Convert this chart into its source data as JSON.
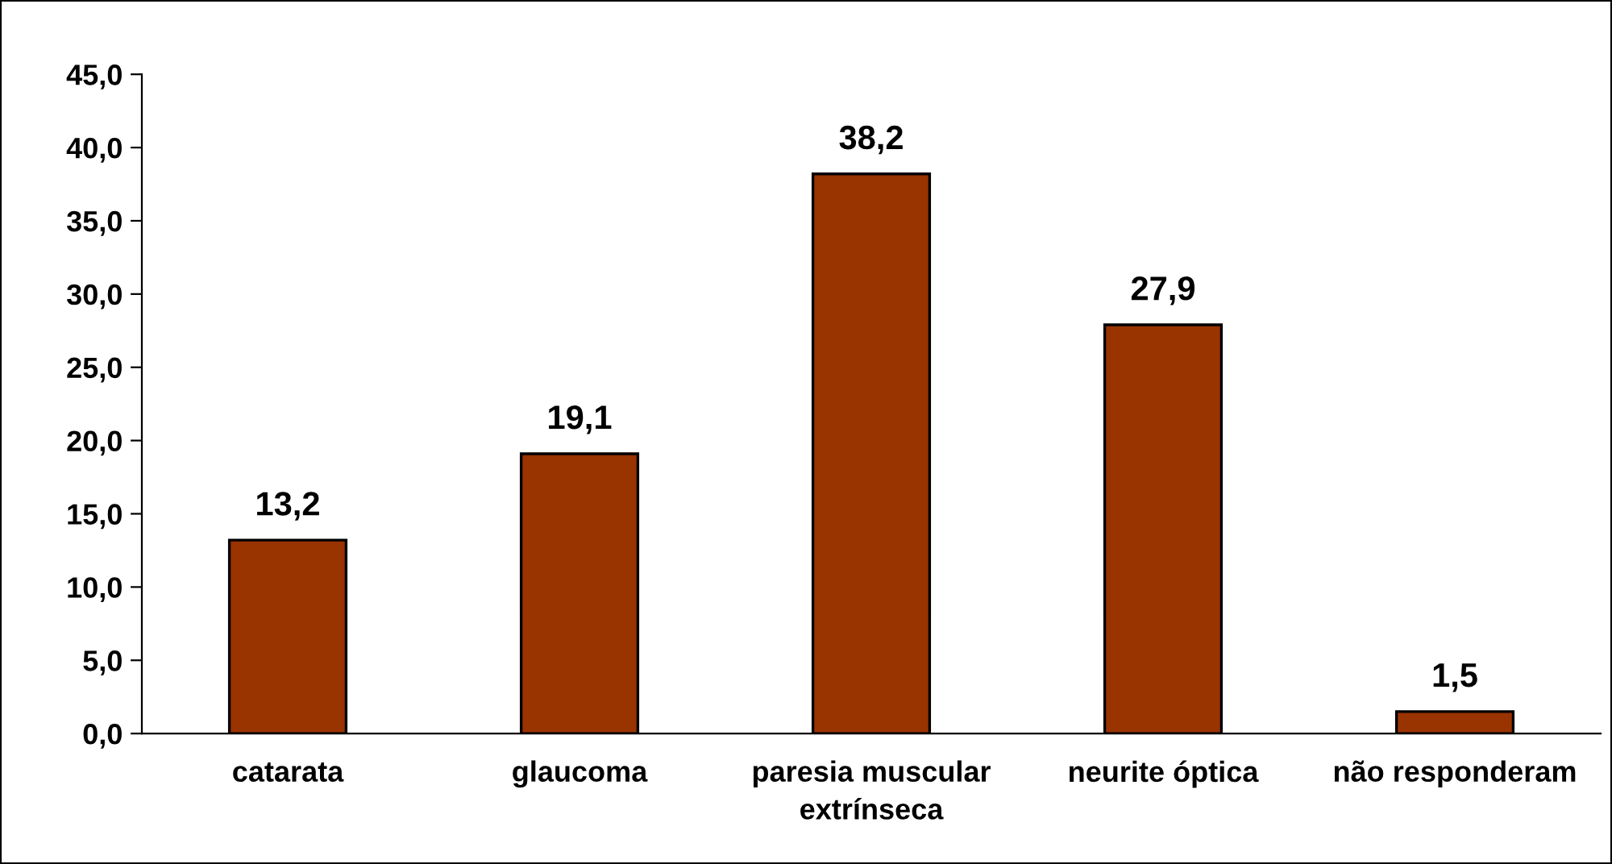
{
  "chart_data": {
    "type": "bar",
    "categories": [
      "catarata",
      "glaucoma",
      "paresia muscular\nextrínseca",
      "neurite óptica",
      "não responderam"
    ],
    "values": [
      13.2,
      19.1,
      38.2,
      27.9,
      1.5
    ],
    "value_labels": [
      "13,2",
      "19,1",
      "38,2",
      "27,9",
      "1,5"
    ],
    "color": "#993300",
    "ylim": [
      0,
      45
    ],
    "yticks": [
      {
        "value": 0,
        "label": "0,0"
      },
      {
        "value": 5,
        "label": "5,0"
      },
      {
        "value": 10,
        "label": "10,0"
      },
      {
        "value": 15,
        "label": "15,0"
      },
      {
        "value": 20,
        "label": "20,0"
      },
      {
        "value": 25,
        "label": "25,0"
      },
      {
        "value": 30,
        "label": "30,0"
      },
      {
        "value": 35,
        "label": "35,0"
      },
      {
        "value": 40,
        "label": "40,0"
      },
      {
        "value": 45,
        "label": "45,0"
      }
    ],
    "grid": false
  }
}
